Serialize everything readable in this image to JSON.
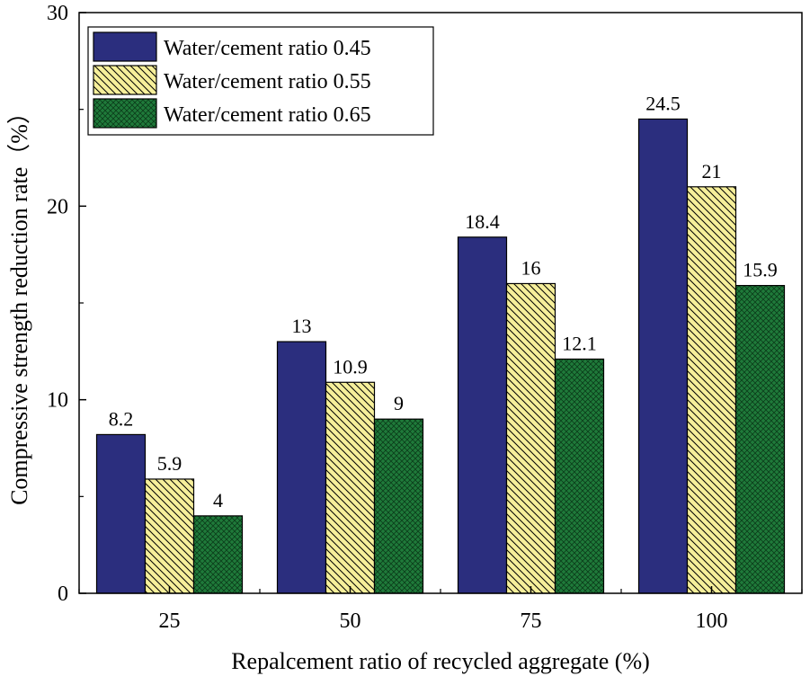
{
  "chart_data": {
    "type": "bar",
    "categories": [
      "25",
      "50",
      "75",
      "100"
    ],
    "series": [
      {
        "name": "Water/cement ratio 0.45",
        "values": [
          8.2,
          13,
          18.4,
          24.5
        ],
        "color": "#2b2e7e",
        "pattern": "solid"
      },
      {
        "name": "Water/cement ratio 0.55",
        "values": [
          5.9,
          10.9,
          16,
          21
        ],
        "color": "#f6ef9a",
        "pattern": "diagonal-hatch"
      },
      {
        "name": "Water/cement ratio 0.65",
        "values": [
          4,
          9,
          12.1,
          15.9
        ],
        "color": "#1f7a3a",
        "pattern": "crosshatch"
      }
    ],
    "value_labels": [
      [
        "8.2",
        "13",
        "18.4",
        "24.5"
      ],
      [
        "5.9",
        "10.9",
        "16",
        "21"
      ],
      [
        "4",
        "9",
        "12.1",
        "15.9"
      ]
    ],
    "xlabel": "Repalcement ratio of recycled aggregate (%)",
    "ylabel": "Compressive strength reduction rate（%）",
    "ylim": [
      0,
      30
    ],
    "yticks": [
      "0",
      "10",
      "20",
      "30"
    ],
    "legend_position": "top-left",
    "grid": false
  }
}
